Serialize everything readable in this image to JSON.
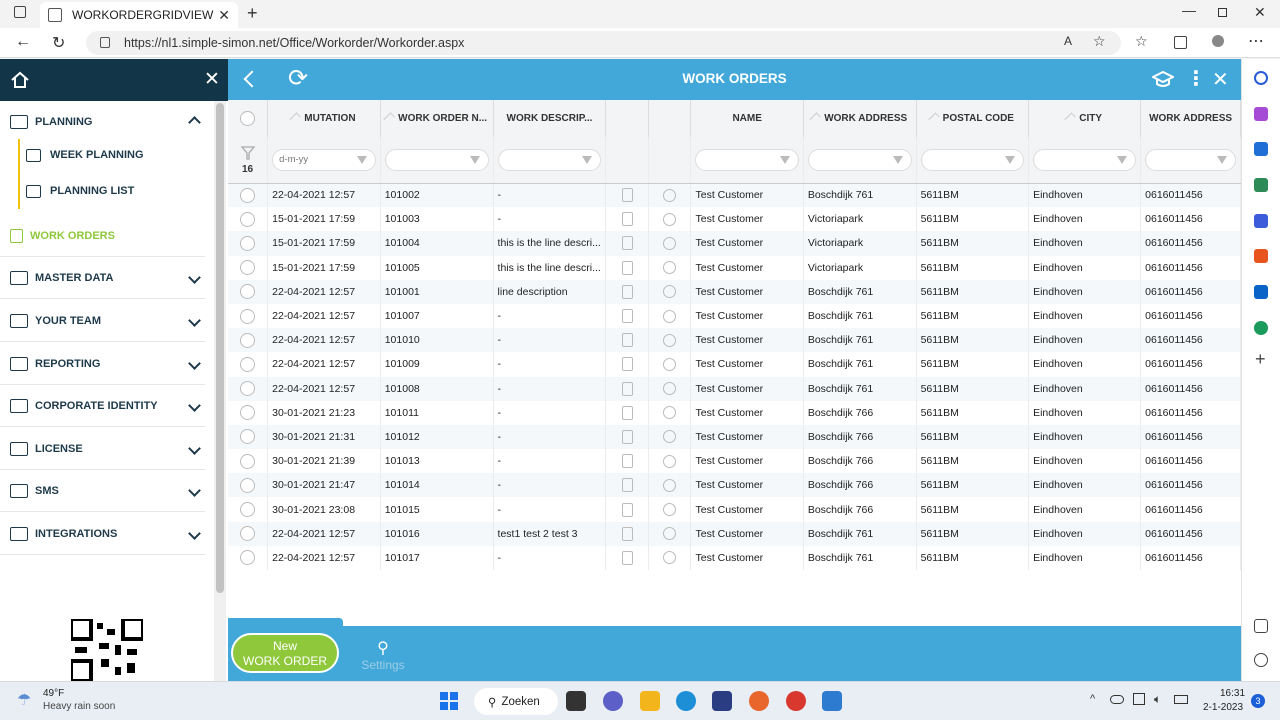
{
  "browser": {
    "tab_title": "WORKORDERGRIDVIEW",
    "tab_close": "✕",
    "new_tab": "+",
    "url": "https://nl1.simple-simon.net/Office/Workorder/Workorder.aspx"
  },
  "sidebar": {
    "items": [
      {
        "label": "PLANNING"
      },
      {
        "label": "WEEK PLANNING"
      },
      {
        "label": "PLANNING LIST"
      },
      {
        "label": "WORK ORDERS"
      },
      {
        "label": "MASTER DATA"
      },
      {
        "label": "YOUR TEAM"
      },
      {
        "label": "REPORTING"
      },
      {
        "label": "CORPORATE IDENTITY"
      },
      {
        "label": "LICENSE"
      },
      {
        "label": "SMS"
      },
      {
        "label": "INTEGRATIONS"
      }
    ],
    "active_color": "#8fc83b"
  },
  "header": {
    "title": "WORK ORDERS"
  },
  "grid": {
    "columns": [
      "MUTATION",
      "WORK ORDER N...",
      "WORK DESCRIP...",
      "",
      "",
      "NAME",
      "WORK ADDRESS",
      "POSTAL CODE",
      "CITY",
      "WORK ADDRESS"
    ],
    "filter_count": "16",
    "date_placeholder": "d-m-yy",
    "rows": [
      [
        "22-04-2021 12:57",
        "101002",
        "-",
        "Test Customer",
        "Boschdijk 761",
        "5611BM",
        "Eindhoven",
        "0616011456"
      ],
      [
        "15-01-2021 17:59",
        "101003",
        "-",
        "Test Customer",
        "Victoriapark",
        "5611BM",
        "Eindhoven",
        "0616011456"
      ],
      [
        "15-01-2021 17:59",
        "101004",
        "this is the line descri...",
        "Test Customer",
        "Victoriapark",
        "5611BM",
        "Eindhoven",
        "0616011456"
      ],
      [
        "15-01-2021 17:59",
        "101005",
        "this is the line descri...",
        "Test Customer",
        "Victoriapark",
        "5611BM",
        "Eindhoven",
        "0616011456"
      ],
      [
        "22-04-2021 12:57",
        "101001",
        "line description",
        "Test Customer",
        "Boschdijk 761",
        "5611BM",
        "Eindhoven",
        "0616011456"
      ],
      [
        "22-04-2021 12:57",
        "101007",
        "-",
        "Test Customer",
        "Boschdijk 761",
        "5611BM",
        "Eindhoven",
        "0616011456"
      ],
      [
        "22-04-2021 12:57",
        "101010",
        "-",
        "Test Customer",
        "Boschdijk 761",
        "5611BM",
        "Eindhoven",
        "0616011456"
      ],
      [
        "22-04-2021 12:57",
        "101009",
        "-",
        "Test Customer",
        "Boschdijk 761",
        "5611BM",
        "Eindhoven",
        "0616011456"
      ],
      [
        "22-04-2021 12:57",
        "101008",
        "-",
        "Test Customer",
        "Boschdijk 761",
        "5611BM",
        "Eindhoven",
        "0616011456"
      ],
      [
        "30-01-2021 21:23",
        "101011",
        "-",
        "Test Customer",
        "Boschdijk 766",
        "5611BM",
        "Eindhoven",
        "0616011456"
      ],
      [
        "30-01-2021 21:31",
        "101012",
        "-",
        "Test Customer",
        "Boschdijk 766",
        "5611BM",
        "Eindhoven",
        "0616011456"
      ],
      [
        "30-01-2021 21:39",
        "101013",
        "-",
        "Test Customer",
        "Boschdijk 766",
        "5611BM",
        "Eindhoven",
        "0616011456"
      ],
      [
        "30-01-2021 21:47",
        "101014",
        "-",
        "Test Customer",
        "Boschdijk 766",
        "5611BM",
        "Eindhoven",
        "0616011456"
      ],
      [
        "30-01-2021 23:08",
        "101015",
        "-",
        "Test Customer",
        "Boschdijk 766",
        "5611BM",
        "Eindhoven",
        "0616011456"
      ],
      [
        "22-04-2021 12:57",
        "101016",
        "test1 test 2 test 3",
        "Test Customer",
        "Boschdijk 761",
        "5611BM",
        "Eindhoven",
        "0616011456"
      ],
      [
        "22-04-2021 12:57",
        "101017",
        "-",
        "Test Customer",
        "Boschdijk 761",
        "5611BM",
        "Eindhoven",
        "0616011456"
      ]
    ]
  },
  "bottom": {
    "new_line1": "New",
    "new_line2": "WORK ORDER",
    "settings": "Settings"
  },
  "taskbar": {
    "temp": "49°F",
    "weather": "Heavy rain soon",
    "search": "Zoeken",
    "time": "16:31",
    "date": "2-1-2023",
    "badge": "3"
  },
  "colors": {
    "accent": "#42a8d9",
    "dark": "#123547",
    "green": "#8fc83b"
  }
}
